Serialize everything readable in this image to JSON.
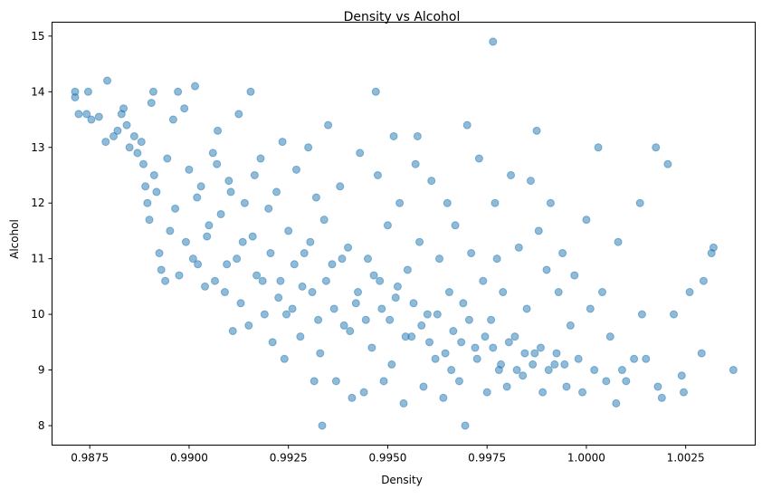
{
  "chart_data": {
    "type": "scatter",
    "title": "Density vs Alcohol",
    "xlabel": "Density",
    "ylabel": "Alcohol",
    "xlim": [
      0.98655,
      1.00425
    ],
    "ylim": [
      7.65,
      15.25
    ],
    "x_ticks": [
      {
        "value": 0.9875,
        "label": "0.9875"
      },
      {
        "value": 0.99,
        "label": "0.9900"
      },
      {
        "value": 0.9925,
        "label": "0.9925"
      },
      {
        "value": 0.995,
        "label": "0.9950"
      },
      {
        "value": 0.9975,
        "label": "0.9975"
      },
      {
        "value": 1.0,
        "label": "1.0000"
      },
      {
        "value": 1.0025,
        "label": "1.0025"
      }
    ],
    "y_ticks": [
      {
        "value": 8,
        "label": "8"
      },
      {
        "value": 9,
        "label": "9"
      },
      {
        "value": 10,
        "label": "10"
      },
      {
        "value": 11,
        "label": "11"
      },
      {
        "value": 12,
        "label": "12"
      },
      {
        "value": 13,
        "label": "13"
      },
      {
        "value": 14,
        "label": "14"
      },
      {
        "value": 15,
        "label": "15"
      }
    ],
    "grid": false,
    "legend": "none",
    "series": [
      {
        "color": "#1f77b4",
        "alpha": 0.5,
        "points": [
          [
            0.98713,
            14.0
          ],
          [
            0.98713,
            13.9
          ],
          [
            0.98722,
            13.6
          ],
          [
            0.98742,
            13.6
          ],
          [
            0.98746,
            14.0
          ],
          [
            0.98754,
            13.5
          ],
          [
            0.98773,
            13.55
          ],
          [
            0.98794,
            14.2
          ],
          [
            0.9879,
            13.1
          ],
          [
            0.9881,
            13.2
          ],
          [
            0.9882,
            13.3
          ],
          [
            0.9883,
            13.6
          ],
          [
            0.98835,
            13.7
          ],
          [
            0.98843,
            13.4
          ],
          [
            0.9885,
            13.0
          ],
          [
            0.98862,
            13.2
          ],
          [
            0.9887,
            12.9
          ],
          [
            0.9888,
            13.1
          ],
          [
            0.98885,
            12.7
          ],
          [
            0.9889,
            12.3
          ],
          [
            0.98895,
            12.0
          ],
          [
            0.989,
            11.7
          ],
          [
            0.98905,
            13.8
          ],
          [
            0.9891,
            14.0
          ],
          [
            0.98912,
            12.5
          ],
          [
            0.98918,
            12.2
          ],
          [
            0.98925,
            11.1
          ],
          [
            0.9893,
            10.8
          ],
          [
            0.9894,
            10.6
          ],
          [
            0.98945,
            12.8
          ],
          [
            0.98952,
            11.5
          ],
          [
            0.9896,
            13.5
          ],
          [
            0.98965,
            11.9
          ],
          [
            0.98972,
            14.0
          ],
          [
            0.98975,
            10.7
          ],
          [
            0.98988,
            13.7
          ],
          [
            0.98992,
            11.3
          ],
          [
            0.99,
            12.6
          ],
          [
            0.9901,
            11.0
          ],
          [
            0.99015,
            14.1
          ],
          [
            0.99022,
            10.9
          ],
          [
            0.9903,
            12.3
          ],
          [
            0.9904,
            10.5
          ],
          [
            0.9905,
            11.6
          ],
          [
            0.9906,
            12.9
          ],
          [
            0.99065,
            10.6
          ],
          [
            0.99072,
            13.3
          ],
          [
            0.9908,
            11.8
          ],
          [
            0.9909,
            10.4
          ],
          [
            0.991,
            12.4
          ],
          [
            0.9911,
            9.7
          ],
          [
            0.9912,
            11.0
          ],
          [
            0.99125,
            13.6
          ],
          [
            0.9913,
            10.2
          ],
          [
            0.9914,
            12.0
          ],
          [
            0.9915,
            9.8
          ],
          [
            0.99155,
            14.0
          ],
          [
            0.9916,
            11.4
          ],
          [
            0.9917,
            10.7
          ],
          [
            0.9918,
            12.8
          ],
          [
            0.9919,
            10.0
          ],
          [
            0.992,
            11.9
          ],
          [
            0.9921,
            9.5
          ],
          [
            0.9922,
            12.2
          ],
          [
            0.9923,
            10.6
          ],
          [
            0.99235,
            13.1
          ],
          [
            0.9924,
            9.2
          ],
          [
            0.9925,
            11.5
          ],
          [
            0.9926,
            10.1
          ],
          [
            0.9927,
            12.6
          ],
          [
            0.9928,
            9.6
          ],
          [
            0.9929,
            11.1
          ],
          [
            0.993,
            13.0
          ],
          [
            0.9931,
            10.4
          ],
          [
            0.99315,
            8.8
          ],
          [
            0.9932,
            12.1
          ],
          [
            0.9933,
            9.3
          ],
          [
            0.99335,
            8.0
          ],
          [
            0.9934,
            11.7
          ],
          [
            0.9935,
            13.4
          ],
          [
            0.9936,
            10.9
          ],
          [
            0.9937,
            8.8
          ],
          [
            0.9938,
            12.3
          ],
          [
            0.9939,
            9.8
          ],
          [
            0.994,
            11.2
          ],
          [
            0.9941,
            8.5
          ],
          [
            0.9942,
            10.2
          ],
          [
            0.9943,
            12.9
          ],
          [
            0.9944,
            8.6
          ],
          [
            0.9945,
            11.0
          ],
          [
            0.9946,
            9.4
          ],
          [
            0.9947,
            14.0
          ],
          [
            0.99475,
            12.5
          ],
          [
            0.9948,
            10.6
          ],
          [
            0.9949,
            8.8
          ],
          [
            0.995,
            11.6
          ],
          [
            0.9951,
            9.1
          ],
          [
            0.99515,
            13.2
          ],
          [
            0.9952,
            10.3
          ],
          [
            0.9953,
            12.0
          ],
          [
            0.9954,
            8.4
          ],
          [
            0.9955,
            10.8
          ],
          [
            0.9956,
            9.6
          ],
          [
            0.9957,
            12.7
          ],
          [
            0.99575,
            13.2
          ],
          [
            0.9958,
            11.3
          ],
          [
            0.9959,
            8.7
          ],
          [
            0.996,
            10.0
          ],
          [
            0.9961,
            12.4
          ],
          [
            0.9962,
            9.2
          ],
          [
            0.9963,
            11.0
          ],
          [
            0.9964,
            8.5
          ],
          [
            0.9965,
            12.0
          ],
          [
            0.99655,
            10.4
          ],
          [
            0.9966,
            9.0
          ],
          [
            0.9967,
            11.6
          ],
          [
            0.9968,
            8.8
          ],
          [
            0.9969,
            10.2
          ],
          [
            0.99695,
            8.0
          ],
          [
            0.997,
            13.4
          ],
          [
            0.9971,
            11.1
          ],
          [
            0.9972,
            9.4
          ],
          [
            0.9973,
            12.8
          ],
          [
            0.9974,
            10.6
          ],
          [
            0.9975,
            8.6
          ],
          [
            0.9976,
            9.9
          ],
          [
            0.99765,
            14.9
          ],
          [
            0.9977,
            12.0
          ],
          [
            0.99775,
            11.0
          ],
          [
            0.9978,
            9.0
          ],
          [
            0.9979,
            10.4
          ],
          [
            0.998,
            8.7
          ],
          [
            0.9981,
            12.5
          ],
          [
            0.9982,
            9.6
          ],
          [
            0.9983,
            11.2
          ],
          [
            0.9984,
            8.9
          ],
          [
            0.9985,
            10.1
          ],
          [
            0.9986,
            12.4
          ],
          [
            0.9987,
            9.3
          ],
          [
            0.99875,
            13.3
          ],
          [
            0.9988,
            11.5
          ],
          [
            0.9989,
            8.6
          ],
          [
            0.999,
            10.8
          ],
          [
            0.9991,
            12.0
          ],
          [
            0.9992,
            9.1
          ],
          [
            0.9993,
            10.4
          ],
          [
            0.9994,
            11.1
          ],
          [
            0.9995,
            8.7
          ],
          [
            0.9996,
            9.8
          ],
          [
            0.9997,
            10.7
          ],
          [
            0.9998,
            9.2
          ],
          [
            0.9999,
            8.6
          ],
          [
            1.0,
            11.7
          ],
          [
            1.0001,
            10.1
          ],
          [
            1.0002,
            9.0
          ],
          [
            1.0003,
            13.0
          ],
          [
            1.0004,
            10.4
          ],
          [
            1.0005,
            8.8
          ],
          [
            1.0006,
            9.6
          ],
          [
            1.00075,
            8.4
          ],
          [
            1.0008,
            11.3
          ],
          [
            1.0009,
            9.0
          ],
          [
            1.001,
            8.8
          ],
          [
            1.0012,
            9.2
          ],
          [
            1.00135,
            12.0
          ],
          [
            1.0014,
            10.0
          ],
          [
            1.0015,
            9.2
          ],
          [
            1.00175,
            13.0
          ],
          [
            1.0018,
            8.7
          ],
          [
            1.0019,
            8.5
          ],
          [
            1.00205,
            12.7
          ],
          [
            1.0022,
            10.0
          ],
          [
            1.0024,
            8.9
          ],
          [
            1.00245,
            8.6
          ],
          [
            1.0026,
            10.4
          ],
          [
            1.0029,
            9.3
          ],
          [
            1.00295,
            10.6
          ],
          [
            1.00315,
            11.1
          ],
          [
            1.0032,
            11.2
          ],
          [
            1.0037,
            9.0
          ],
          [
            0.9902,
            12.1
          ],
          [
            0.99045,
            11.4
          ],
          [
            0.9907,
            12.7
          ],
          [
            0.99095,
            10.9
          ],
          [
            0.99105,
            12.2
          ],
          [
            0.99135,
            11.3
          ],
          [
            0.99165,
            12.5
          ],
          [
            0.99185,
            10.6
          ],
          [
            0.99205,
            11.1
          ],
          [
            0.99225,
            10.3
          ],
          [
            0.99245,
            10.0
          ],
          [
            0.99265,
            10.9
          ],
          [
            0.99285,
            10.5
          ],
          [
            0.99305,
            11.3
          ],
          [
            0.99325,
            9.9
          ],
          [
            0.99345,
            10.6
          ],
          [
            0.99365,
            10.1
          ],
          [
            0.99385,
            11.0
          ],
          [
            0.99405,
            9.7
          ],
          [
            0.99425,
            10.4
          ],
          [
            0.99445,
            9.9
          ],
          [
            0.99465,
            10.7
          ],
          [
            0.99485,
            10.1
          ],
          [
            0.99505,
            9.9
          ],
          [
            0.99525,
            10.5
          ],
          [
            0.99545,
            9.6
          ],
          [
            0.99565,
            10.2
          ],
          [
            0.99585,
            9.8
          ],
          [
            0.99605,
            9.5
          ],
          [
            0.99625,
            10.0
          ],
          [
            0.99645,
            9.3
          ],
          [
            0.99665,
            9.7
          ],
          [
            0.99685,
            9.5
          ],
          [
            0.99705,
            9.9
          ],
          [
            0.99725,
            9.2
          ],
          [
            0.99745,
            9.6
          ],
          [
            0.99765,
            9.4
          ],
          [
            0.99785,
            9.1
          ],
          [
            0.99805,
            9.5
          ],
          [
            0.99825,
            9.0
          ],
          [
            0.99845,
            9.3
          ],
          [
            0.99865,
            9.1
          ],
          [
            0.99885,
            9.4
          ],
          [
            0.99905,
            9.0
          ],
          [
            0.99925,
            9.3
          ],
          [
            0.99945,
            9.1
          ]
        ]
      }
    ]
  }
}
